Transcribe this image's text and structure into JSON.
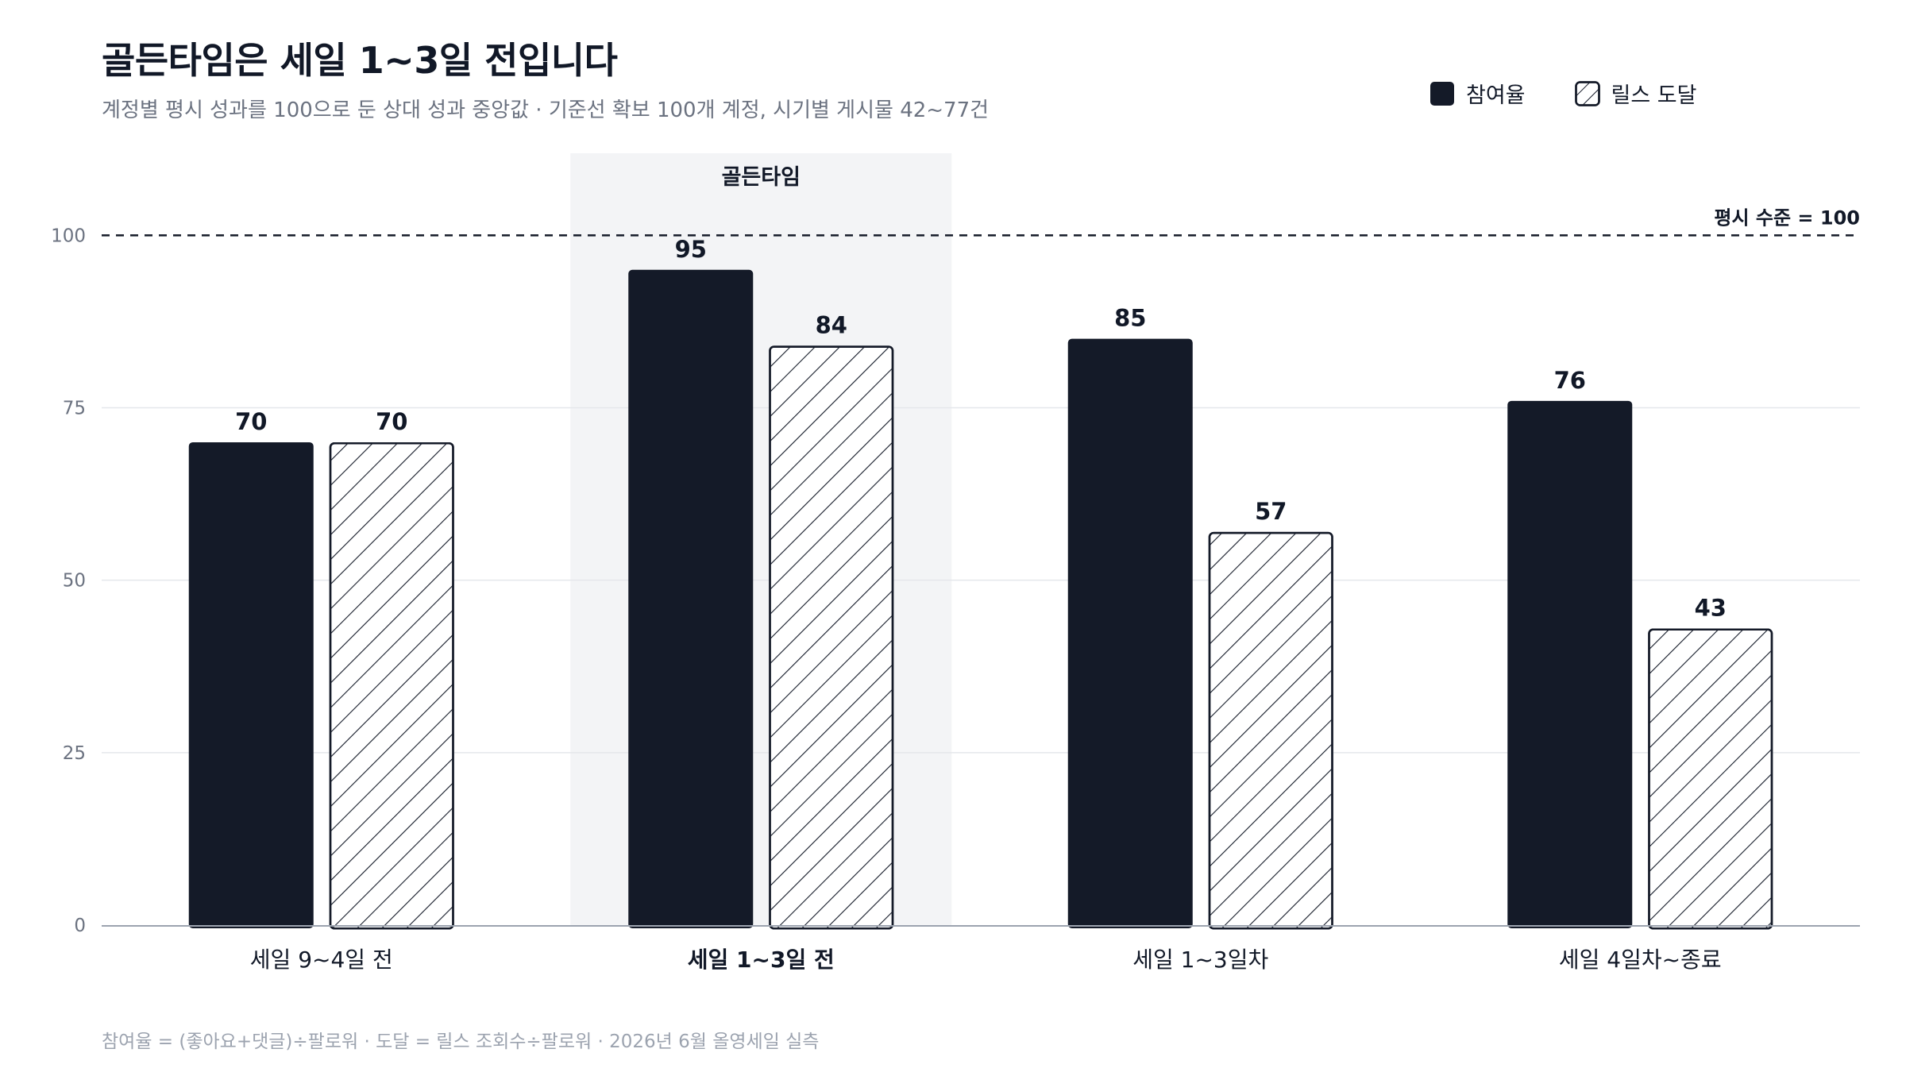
{
  "title": "골든타임은 세일 1~3일 전입니다",
  "subtitle": "계정별 평시 성과를 100으로 둔 상대 성과 중앙값 · 기준선 확보 100개 계정, 시기별 게시물 42~77건",
  "footer": "참여율 = (좋아요+댓글)÷팔로워 · 도달 = 릴스 조회수÷팔로워 · 2026년 6월 올영세일 실측",
  "legend": [
    {
      "label": "참여율",
      "style": "solid"
    },
    {
      "label": "릴스 도달",
      "style": "hatched"
    }
  ],
  "colors": {
    "dark": "#141a28",
    "highlight_band": "#f3f4f6",
    "grid": "#e5e7eb",
    "axis": "#9ca3af",
    "muted_text": "#6b7280"
  },
  "chart_data": {
    "type": "bar",
    "categories": [
      "세일 9~4일 전",
      "세일 1~3일 전",
      "세일 1~3일차",
      "세일 4일차~종료"
    ],
    "series": [
      {
        "name": "참여율",
        "values": [
          70,
          95,
          85,
          76
        ]
      },
      {
        "name": "릴스 도달",
        "values": [
          70,
          84,
          57,
          43
        ]
      }
    ],
    "ylim": [
      0,
      118
    ],
    "yticks": [
      0,
      25,
      50,
      75,
      100
    ],
    "grid": true,
    "legend_position": "top-right",
    "highlight": {
      "category_index": 1,
      "label": "골든타임"
    },
    "reference_line": {
      "value": 100,
      "label": "평시 수준 = 100"
    }
  }
}
